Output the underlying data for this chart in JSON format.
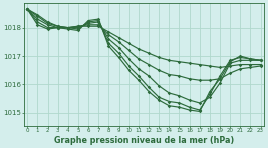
{
  "bg_color": "#d4eeec",
  "grid_color": "#b0d8cc",
  "line_color": "#2d6b3c",
  "title": "Graphe pression niveau de la mer (hPa)",
  "xlabel_ticks": [
    0,
    1,
    2,
    3,
    4,
    5,
    6,
    7,
    8,
    9,
    10,
    11,
    12,
    13,
    14,
    15,
    16,
    17,
    18,
    19,
    20,
    21,
    22,
    23
  ],
  "yticks": [
    1015,
    1016,
    1017,
    1018
  ],
  "ylim": [
    1014.55,
    1018.85
  ],
  "xlim": [
    -0.3,
    23.3
  ],
  "series": [
    [
      1018.65,
      1018.45,
      1018.2,
      1018.05,
      1018.0,
      1018.05,
      1018.05,
      1018.05,
      1017.85,
      1017.65,
      1017.45,
      1017.25,
      1017.1,
      1016.95,
      1016.85,
      1016.8,
      1016.75,
      1016.7,
      1016.65,
      1016.6,
      1016.65,
      1016.7,
      1016.7,
      1016.7
    ],
    [
      1018.65,
      1018.4,
      1018.15,
      1018.05,
      1018.0,
      1018.05,
      1018.1,
      1018.1,
      1017.75,
      1017.5,
      1017.2,
      1016.9,
      1016.7,
      1016.5,
      1016.35,
      1016.3,
      1016.2,
      1016.15,
      1016.15,
      1016.2,
      1016.4,
      1016.55,
      1016.6,
      1016.65
    ],
    [
      1018.65,
      1018.3,
      1018.1,
      1018.0,
      1018.0,
      1018.0,
      1018.15,
      1018.2,
      1017.6,
      1017.3,
      1016.9,
      1016.55,
      1016.3,
      1015.95,
      1015.7,
      1015.6,
      1015.45,
      1015.35,
      1015.55,
      1016.05,
      1016.75,
      1016.85,
      1016.85,
      1016.85
    ],
    [
      1018.65,
      1018.2,
      1018.0,
      1018.0,
      1018.0,
      1017.95,
      1018.2,
      1018.25,
      1017.45,
      1017.1,
      1016.65,
      1016.3,
      1015.9,
      1015.55,
      1015.4,
      1015.35,
      1015.2,
      1015.1,
      1015.65,
      1016.3,
      1016.85,
      1016.95,
      1016.9,
      1016.85
    ],
    [
      1018.65,
      1018.1,
      1017.95,
      1018.0,
      1017.95,
      1017.9,
      1018.25,
      1018.3,
      1017.35,
      1016.95,
      1016.5,
      1016.15,
      1015.75,
      1015.45,
      1015.25,
      1015.2,
      1015.1,
      1015.05,
      1015.75,
      1016.2,
      1016.8,
      1017.0,
      1016.9,
      1016.85
    ]
  ]
}
